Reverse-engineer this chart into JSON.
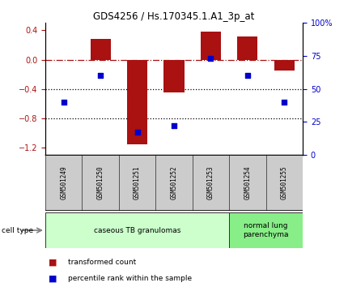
{
  "title": "GDS4256 / Hs.170345.1.A1_3p_at",
  "samples": [
    "GSM501249",
    "GSM501250",
    "GSM501251",
    "GSM501252",
    "GSM501253",
    "GSM501254",
    "GSM501255"
  ],
  "transformed_count": [
    0.0,
    0.28,
    -1.15,
    -0.45,
    0.38,
    0.32,
    -0.15
  ],
  "percentile_rank": [
    40,
    60,
    17,
    22,
    73,
    60,
    40
  ],
  "ylim_left": [
    -1.3,
    0.5
  ],
  "ylim_right": [
    0,
    100
  ],
  "yticks_left": [
    0.4,
    0.0,
    -0.4,
    -0.8,
    -1.2
  ],
  "yticks_right": [
    100,
    75,
    50,
    25,
    0
  ],
  "ytick_right_labels": [
    "100%",
    "75",
    "50",
    "25",
    "0"
  ],
  "bar_color": "#aa1111",
  "scatter_color": "#0000cc",
  "dotted_lines": [
    -0.4,
    -0.8
  ],
  "cell_type_groups": [
    {
      "label": "caseous TB granulomas",
      "samples": [
        0,
        1,
        2,
        3,
        4
      ],
      "color": "#ccffcc"
    },
    {
      "label": "normal lung\nparenchyma",
      "samples": [
        5,
        6
      ],
      "color": "#88ee88"
    }
  ],
  "legend_items": [
    {
      "label": "transformed count",
      "color": "#aa1111"
    },
    {
      "label": "percentile rank within the sample",
      "color": "#0000cc"
    }
  ],
  "cell_type_label": "cell type",
  "bar_width": 0.55,
  "background_color": "#ffffff",
  "xlabel_box_color": "#cccccc"
}
